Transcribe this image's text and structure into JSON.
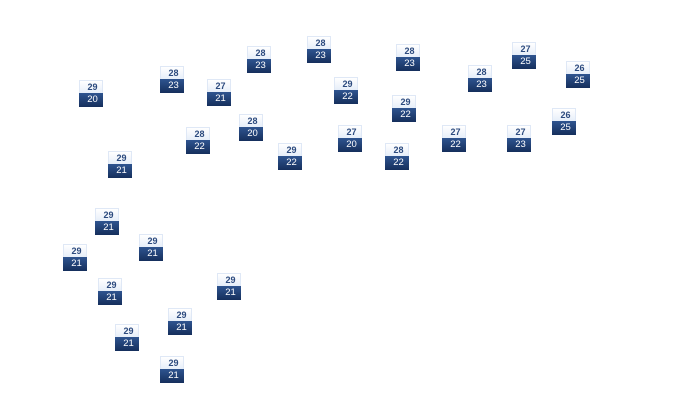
{
  "map": {
    "accent_color": "#1f3d72",
    "markers": [
      {
        "high": "29",
        "low": "20"
      },
      {
        "high": "28",
        "low": "23"
      },
      {
        "high": "27",
        "low": "21"
      },
      {
        "high": "28",
        "low": "23"
      },
      {
        "high": "28",
        "low": "23"
      },
      {
        "high": "29",
        "low": "22"
      },
      {
        "high": "28",
        "low": "20"
      },
      {
        "high": "28",
        "low": "22"
      },
      {
        "high": "27",
        "low": "20"
      },
      {
        "high": "29",
        "low": "22"
      },
      {
        "high": "29",
        "low": "21"
      },
      {
        "high": "28",
        "low": "23"
      },
      {
        "high": "27",
        "low": "25"
      },
      {
        "high": "28",
        "low": "23"
      },
      {
        "high": "26",
        "low": "25"
      },
      {
        "high": "29",
        "low": "22"
      },
      {
        "high": "26",
        "low": "25"
      },
      {
        "high": "27",
        "low": "22"
      },
      {
        "high": "27",
        "low": "23"
      },
      {
        "high": "28",
        "low": "22"
      },
      {
        "high": "29",
        "low": "21"
      },
      {
        "high": "29",
        "low": "21"
      },
      {
        "high": "29",
        "low": "21"
      },
      {
        "high": "29",
        "low": "21"
      },
      {
        "high": "29",
        "low": "21"
      },
      {
        "high": "29",
        "low": "21"
      },
      {
        "high": "29",
        "low": "21"
      },
      {
        "high": "29",
        "low": "21"
      }
    ]
  }
}
